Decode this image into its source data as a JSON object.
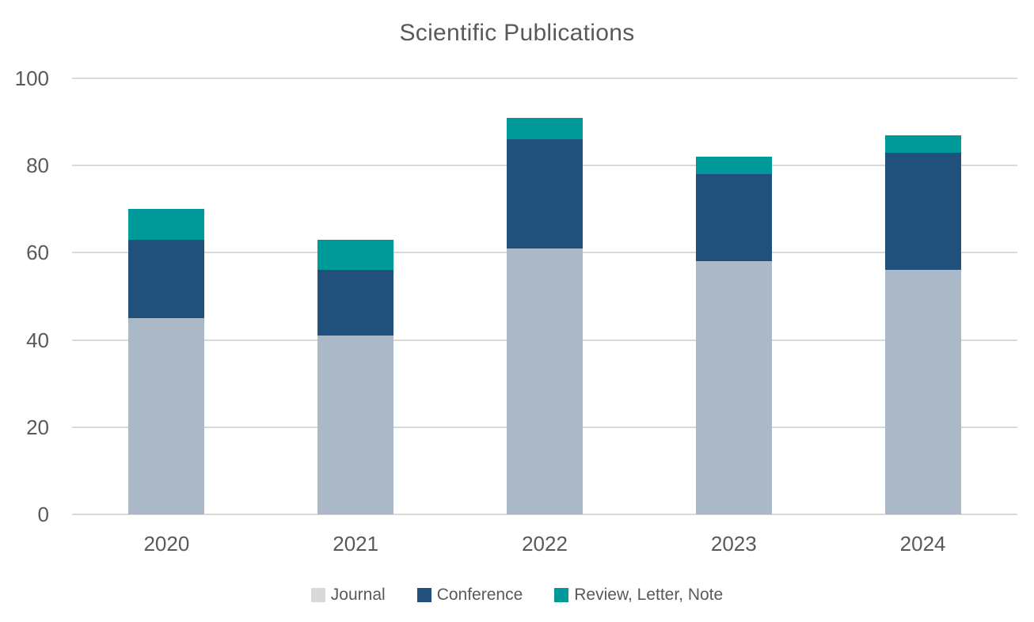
{
  "chart_data": {
    "type": "bar",
    "stacked": true,
    "title": "Scientific Publications",
    "categories": [
      "2020",
      "2021",
      "2022",
      "2023",
      "2024"
    ],
    "series": [
      {
        "name": "Journal",
        "values": [
          45,
          41,
          61,
          58,
          56
        ],
        "color": "#ABB8C8",
        "legend_color": "#D9D9D9"
      },
      {
        "name": "Conference",
        "values": [
          18,
          15,
          25,
          20,
          27
        ],
        "color": "#20507B",
        "legend_color": "#20507B"
      },
      {
        "name": "Review, Letter, Note",
        "values": [
          7,
          7,
          5,
          4,
          4
        ],
        "color": "#009999",
        "legend_color": "#009999"
      }
    ],
    "stack_totals": [
      70,
      63,
      91,
      82,
      87
    ],
    "xlabel": "",
    "ylabel": "",
    "ylim": [
      0,
      100
    ],
    "y_ticks": [
      0,
      20,
      40,
      60,
      80,
      100
    ],
    "grid": true,
    "legend_position": "bottom"
  },
  "style": {
    "text_color": "#595959",
    "gridline_color": "#D9D9D9",
    "background_color": "#FFFFFF"
  }
}
